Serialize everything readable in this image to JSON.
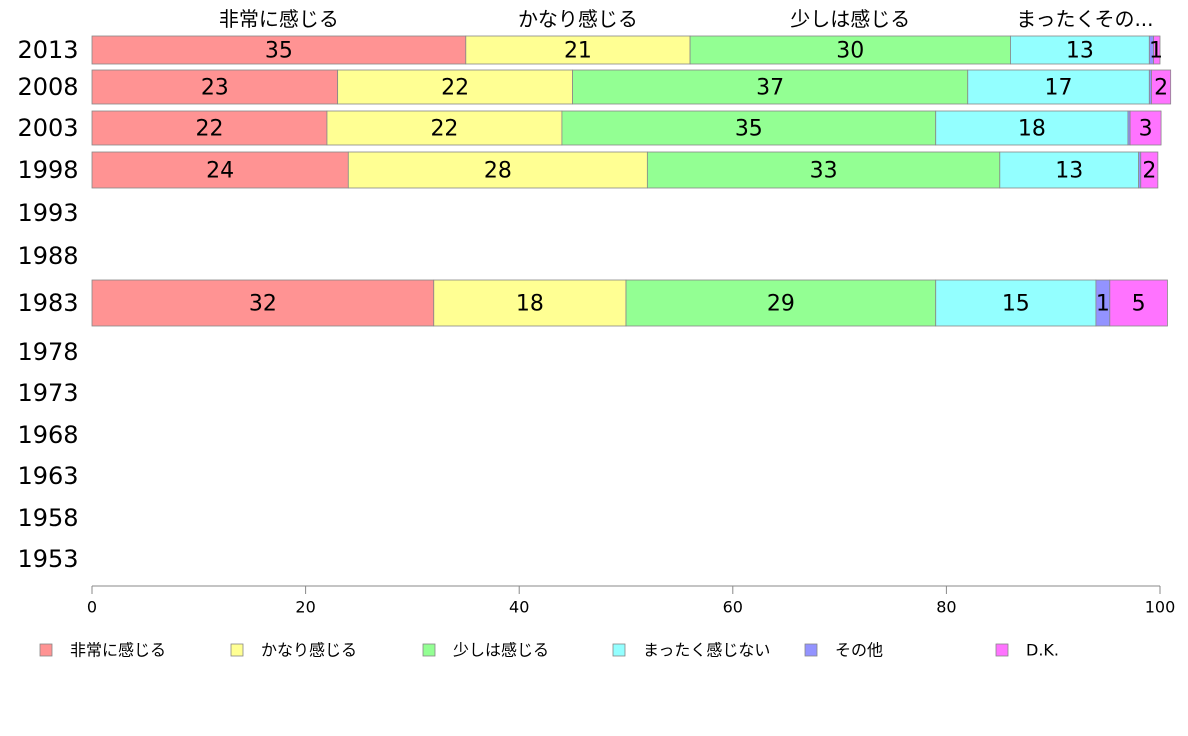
{
  "chart_data": {
    "type": "bar",
    "orientation": "horizontal",
    "stacked": true,
    "categories": [
      "2013",
      "2008",
      "2003",
      "1998",
      "1993",
      "1988",
      "1983",
      "1978",
      "1973",
      "1968",
      "1963",
      "1958",
      "1953"
    ],
    "series": [
      {
        "name": "非常に感じる",
        "color": "#ff9393",
        "values": [
          35,
          23,
          22,
          24,
          null,
          null,
          32,
          null,
          null,
          null,
          null,
          null,
          null
        ]
      },
      {
        "name": "かなり感じる",
        "color": "#ffff93",
        "values": [
          21,
          22,
          22,
          28,
          null,
          null,
          18,
          null,
          null,
          null,
          null,
          null,
          null
        ]
      },
      {
        "name": "少しは感じる",
        "color": "#93ff93",
        "values": [
          30,
          37,
          35,
          33,
          null,
          null,
          29,
          null,
          null,
          null,
          null,
          null,
          null
        ]
      },
      {
        "name": "まったく感じない",
        "color": "#93ffff",
        "values": [
          13,
          17,
          18,
          13,
          null,
          null,
          15,
          null,
          null,
          null,
          null,
          null,
          null
        ]
      },
      {
        "name": "その他",
        "color": "#9393ff",
        "values": [
          0.4,
          0.2,
          0.2,
          0.2,
          null,
          null,
          1.3,
          null,
          null,
          null,
          null,
          null,
          null
        ]
      },
      {
        "name": "D.K.",
        "color": "#ff73ff",
        "values": [
          0.6,
          1.8,
          2.9,
          1.6,
          null,
          null,
          5.4,
          null,
          null,
          null,
          null,
          null,
          null
        ]
      }
    ],
    "data_labels": [
      [
        "35",
        "21",
        "30",
        "13",
        "",
        "1"
      ],
      [
        "23",
        "22",
        "37",
        "17",
        "",
        "2"
      ],
      [
        "22",
        "22",
        "35",
        "18",
        "",
        "3"
      ],
      [
        "24",
        "28",
        "33",
        "13",
        "",
        "2"
      ],
      null,
      null,
      [
        "32",
        "18",
        "29",
        "15",
        "1",
        "5"
      ],
      null,
      null,
      null,
      null,
      null,
      null
    ],
    "column_headers": [
      "非常に感じる",
      "かなり感じる",
      "少しは感じる",
      "まったく感じない",
      "その他"
    ],
    "column_header_display": [
      "非常に感じる",
      "かなり感じる",
      "少しは感じる",
      "まったく",
      "その..."
    ],
    "xlim": [
      0,
      100
    ],
    "xticks": [
      0,
      20,
      40,
      60,
      80,
      100
    ],
    "grid": false,
    "legend_position": "bottom",
    "legend_labels": [
      "非常に感じる",
      "かなり感じる",
      "少しは感じる",
      "まったく感じない",
      "その他",
      "D.K."
    ]
  }
}
